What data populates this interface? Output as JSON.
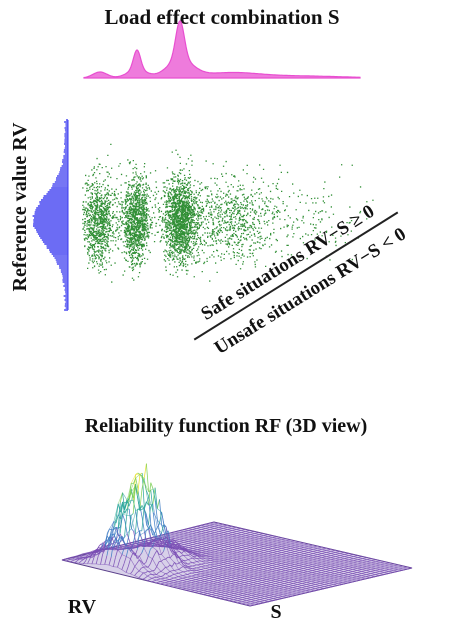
{
  "top_panel": {
    "s_axis_title": "Load effect combination S",
    "rv_axis_title": "Reference value RV",
    "safe_region_label": "Safe situations RV−S ≥ 0",
    "unsafe_region_label": "Unsafe situations RV−S < 0",
    "colors": {
      "s_density": "#e84fd0",
      "rv_histogram": "#3b3bf0",
      "scatter_points": "#0e7d14",
      "limit_line": "#222222"
    }
  },
  "bottom_panel": {
    "title": "Reliability function RF (3D view)",
    "rv_axis_label": "RV",
    "s_axis_label": "S",
    "colormap": [
      "#46106e",
      "#7b4fb5",
      "#3f7cc4",
      "#2aa59a",
      "#7ccf55",
      "#e6e02a"
    ]
  }
}
